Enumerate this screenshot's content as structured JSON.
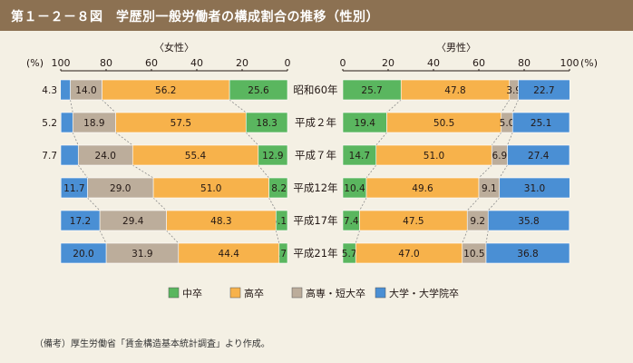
{
  "header": {
    "title": "第１－２－８図　学歴別一般労働者の構成割合の推移（性別）"
  },
  "note": "（備考）厚生労働省「賃金構造基本統計調査」より作成。",
  "chart_data": {
    "type": "bar",
    "stacked": true,
    "unit": "(%)",
    "categories": [
      "昭和60年",
      "平成２年",
      "平成７年",
      "平成12年",
      "平成17年",
      "平成21年"
    ],
    "legend": [
      "中卒",
      "高卒",
      "高専・短大卒",
      "大学・大学院卒"
    ],
    "legend_position": "bottom",
    "colors": {
      "中卒": "#5ab65f",
      "高卒": "#f7b24b",
      "高専・短大卒": "#bcad9b",
      "大学・大学院卒": "#4a8fd4"
    },
    "panels": [
      {
        "title": "〈女性〉",
        "direction": "reversed",
        "xlim": [
          100,
          0
        ],
        "ticks": [
          "100",
          "80",
          "60",
          "40",
          "20",
          "0"
        ],
        "series": [
          {
            "name": "中卒",
            "values": [
              25.6,
              18.3,
              12.9,
              8.2,
              5.1,
              3.7
            ]
          },
          {
            "name": "高卒",
            "values": [
              56.2,
              57.5,
              55.4,
              51.0,
              48.3,
              44.4
            ]
          },
          {
            "name": "高専・短大卒",
            "values": [
              14.0,
              18.9,
              24.0,
              29.0,
              29.4,
              31.9
            ]
          },
          {
            "name": "大学・大学院卒",
            "values": [
              4.3,
              5.2,
              7.7,
              11.7,
              17.2,
              20.0
            ]
          }
        ]
      },
      {
        "title": "〈男性〉",
        "direction": "normal",
        "xlim": [
          0,
          100
        ],
        "ticks": [
          "0",
          "20",
          "40",
          "60",
          "80",
          "100"
        ],
        "series": [
          {
            "name": "中卒",
            "values": [
              25.7,
              19.4,
              14.7,
              10.4,
              7.4,
              5.7
            ]
          },
          {
            "name": "高卒",
            "values": [
              47.8,
              50.5,
              51.0,
              49.6,
              47.5,
              47.0
            ]
          },
          {
            "name": "高専・短大卒",
            "values": [
              3.9,
              5.0,
              6.9,
              9.1,
              9.2,
              10.5
            ]
          },
          {
            "name": "大学・大学院卒",
            "values": [
              22.7,
              25.1,
              27.4,
              31.0,
              35.8,
              36.8
            ]
          }
        ]
      }
    ]
  }
}
